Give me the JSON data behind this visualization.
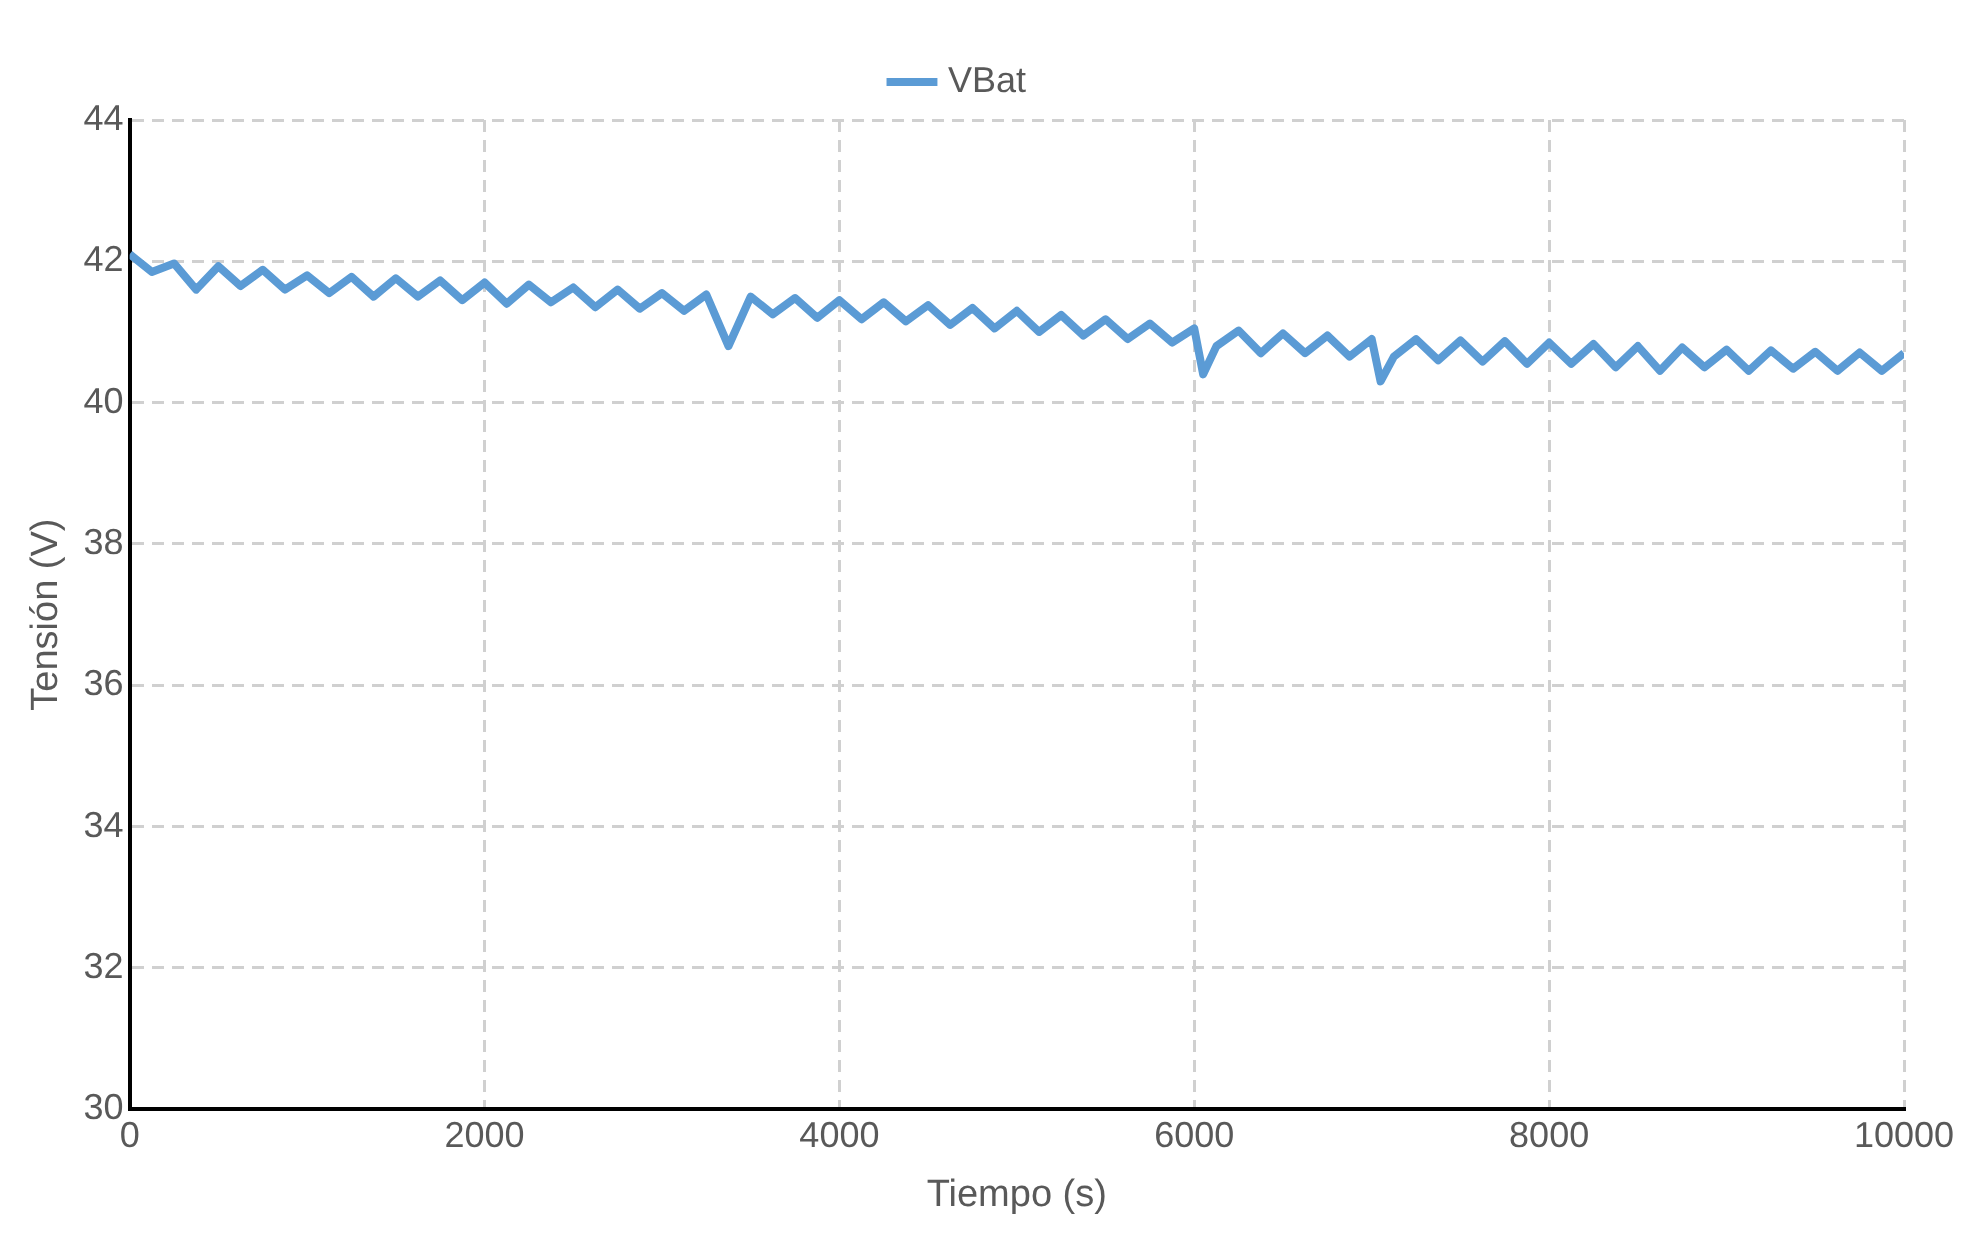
{
  "chart_data": {
    "type": "line",
    "xlabel": "Tiempo (s)",
    "ylabel": "Tensión (V)",
    "xlim": [
      0,
      10000
    ],
    "xticks": [
      0,
      2000,
      4000,
      6000,
      8000,
      10000
    ],
    "ylim": [
      30,
      44
    ],
    "yticks": [
      30,
      32,
      34,
      36,
      38,
      40,
      42,
      44
    ],
    "grid": true,
    "legend": "top",
    "marker": "none",
    "series": [
      {
        "name": "VBat",
        "color": "#5b9bd5",
        "x": [
          0,
          125,
          250,
          375,
          500,
          625,
          750,
          875,
          1000,
          1125,
          1250,
          1375,
          1500,
          1625,
          1750,
          1875,
          2000,
          2125,
          2250,
          2375,
          2500,
          2625,
          2750,
          2875,
          3000,
          3125,
          3250,
          3375,
          3500,
          3625,
          3750,
          3875,
          4000,
          4125,
          4250,
          4375,
          4500,
          4625,
          4750,
          4875,
          5000,
          5125,
          5250,
          5375,
          5500,
          5625,
          5750,
          5875,
          6000,
          6050,
          6125,
          6250,
          6375,
          6500,
          6625,
          6750,
          6875,
          7000,
          7050,
          7125,
          7250,
          7375,
          7500,
          7625,
          7750,
          7875,
          8000,
          8125,
          8250,
          8375,
          8500,
          8625,
          8750,
          8875,
          9000,
          9125,
          9250,
          9375,
          9500,
          9625,
          9750,
          9875,
          10000
        ],
        "values": [
          42.1,
          41.85,
          41.97,
          41.6,
          41.93,
          41.65,
          41.88,
          41.6,
          41.8,
          41.55,
          41.78,
          41.5,
          41.76,
          41.5,
          41.73,
          41.45,
          41.7,
          41.4,
          41.67,
          41.42,
          41.63,
          41.35,
          41.6,
          41.33,
          41.55,
          41.3,
          41.53,
          40.8,
          41.5,
          41.25,
          41.48,
          41.2,
          41.45,
          41.18,
          41.42,
          41.15,
          41.38,
          41.1,
          41.34,
          41.05,
          41.3,
          41.0,
          41.24,
          40.95,
          41.18,
          40.9,
          41.12,
          40.85,
          41.05,
          40.4,
          40.8,
          41.02,
          40.7,
          40.98,
          40.7,
          40.95,
          40.65,
          40.9,
          40.3,
          40.65,
          40.9,
          40.6,
          40.88,
          40.58,
          40.87,
          40.55,
          40.85,
          40.55,
          40.83,
          40.5,
          40.8,
          40.45,
          40.78,
          40.5,
          40.75,
          40.45,
          40.74,
          40.48,
          40.72,
          40.45,
          40.71,
          40.45,
          40.7
        ]
      }
    ]
  }
}
